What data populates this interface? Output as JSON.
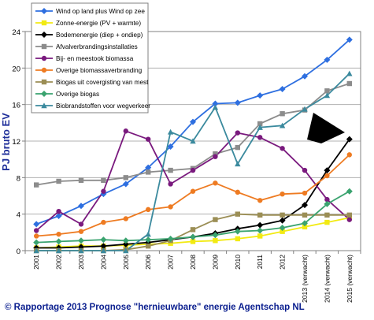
{
  "chart_data": {
    "type": "line",
    "ylabel": "PJ bruto EV",
    "ylim": [
      0,
      24
    ],
    "yticks": [
      0,
      4,
      8,
      12,
      16,
      20,
      24
    ],
    "grid": "horizontal",
    "legend_position": "top-left",
    "categories": [
      "2001",
      "2002",
      "2003",
      "2004",
      "2005",
      "2006",
      "2007",
      "2008",
      "2009",
      "2010",
      "2011",
      "2012",
      "2013 (verwacht)",
      "2014 (verwacht)",
      "2015 (verwacht)"
    ],
    "series": [
      {
        "name": "Wind op land plus Wind op zee",
        "color": "#2e6fe0",
        "marker": "diamond",
        "values": [
          2.9,
          3.8,
          4.9,
          6.2,
          7.3,
          9.1,
          11.4,
          14.1,
          16.1,
          16.2,
          17.0,
          17.7,
          19.1,
          20.9,
          23.1
        ]
      },
      {
        "name": "Zonne-energie (PV + warmte)",
        "color": "#f2ea12",
        "marker": "square",
        "values": [
          0.3,
          0.4,
          0.5,
          0.5,
          0.6,
          0.7,
          0.8,
          1.0,
          1.1,
          1.3,
          1.6,
          2.1,
          2.6,
          3.1,
          3.6
        ]
      },
      {
        "name": "Bodemenergie (diep + ondiep)",
        "color": "#000000",
        "marker": "diamond",
        "values": [
          0.3,
          0.3,
          0.4,
          0.5,
          0.7,
          0.9,
          1.2,
          1.5,
          1.9,
          2.4,
          2.8,
          3.3,
          5.0,
          8.8,
          12.2
        ]
      },
      {
        "name": "Afvalverbrandingsinstallaties",
        "color": "#8c8c8c",
        "marker": "square",
        "values": [
          7.2,
          7.6,
          7.7,
          7.7,
          8.0,
          8.6,
          8.8,
          9.0,
          10.6,
          11.3,
          13.9,
          15.0,
          15.4,
          17.5,
          18.3
        ]
      },
      {
        "name": "Bij- en meestook biomassa",
        "color": "#7a1a7e",
        "marker": "circle",
        "values": [
          2.2,
          4.3,
          2.9,
          6.5,
          13.1,
          12.2,
          7.3,
          8.8,
          10.3,
          12.9,
          12.4,
          11.2,
          8.8,
          5.6,
          3.4
        ]
      },
      {
        "name": "Overige biomassaverbranding",
        "color": "#ee7b22",
        "marker": "circle",
        "values": [
          1.6,
          1.8,
          2.1,
          3.1,
          3.5,
          4.5,
          4.8,
          6.5,
          7.4,
          6.4,
          5.5,
          6.2,
          6.3,
          8.2,
          10.5
        ]
      },
      {
        "name": "Biogas uit covergisting van mest",
        "color": "#9b8e55",
        "marker": "square",
        "values": [
          0.0,
          0.0,
          0.0,
          0.0,
          0.1,
          0.5,
          1.1,
          2.3,
          3.4,
          4.0,
          3.9,
          3.9,
          3.9,
          3.9,
          3.9
        ]
      },
      {
        "name": "Overige biogas",
        "color": "#3aa36f",
        "marker": "diamond",
        "values": [
          0.9,
          1.0,
          1.1,
          1.2,
          1.1,
          1.2,
          1.3,
          1.5,
          1.7,
          2.1,
          2.2,
          2.5,
          3.0,
          5.1,
          6.5
        ]
      },
      {
        "name": "Biobrandstoffen voor wegverkeer",
        "color": "#3b8a9e",
        "marker": "triangle",
        "values": [
          0.0,
          0.0,
          0.0,
          0.0,
          0.0,
          1.8,
          13.0,
          12.0,
          15.7,
          9.5,
          13.5,
          13.7,
          15.5,
          17.0,
          19.4
        ]
      }
    ]
  },
  "footer": {
    "credit": "© Rapportage 2013 Prognose \"hernieuwbare\" energie Agentschap NL"
  }
}
